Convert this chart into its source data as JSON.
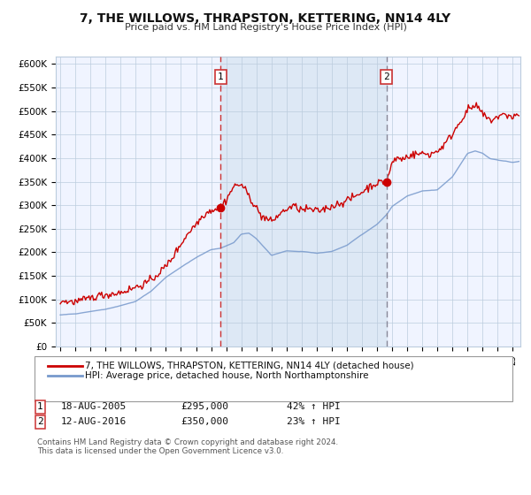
{
  "title": "7, THE WILLOWS, THRAPSTON, KETTERING, NN14 4LY",
  "subtitle": "Price paid vs. HM Land Registry's House Price Index (HPI)",
  "legend_line1": "7, THE WILLOWS, THRAPSTON, KETTERING, NN14 4LY (detached house)",
  "legend_line2": "HPI: Average price, detached house, North Northamptonshire",
  "sale1_date": "18-AUG-2005",
  "sale1_price": "£295,000",
  "sale1_hpi": "42% ↑ HPI",
  "sale1_year": 2005.625,
  "sale1_value": 295000,
  "sale2_date": "12-AUG-2016",
  "sale2_price": "£350,000",
  "sale2_hpi": "23% ↑ HPI",
  "sale2_year": 2016.625,
  "sale2_value": 350000,
  "red_color": "#cc0000",
  "blue_color": "#7799cc",
  "bg_color": "#ffffff",
  "chart_bg": "#f0f4ff",
  "span_color": "#dde8f5",
  "grid_color": "#bbccdd",
  "vline1_color": "#cc3333",
  "vline2_color": "#888899",
  "copyright_text": "Contains HM Land Registry data © Crown copyright and database right 2024.\nThis data is licensed under the Open Government Licence v3.0.",
  "ylim": [
    0,
    615000
  ],
  "xlim_start": 1994.7,
  "xlim_end": 2025.5,
  "yticks": [
    0,
    50000,
    100000,
    150000,
    200000,
    250000,
    300000,
    350000,
    400000,
    450000,
    500000,
    550000,
    600000
  ]
}
